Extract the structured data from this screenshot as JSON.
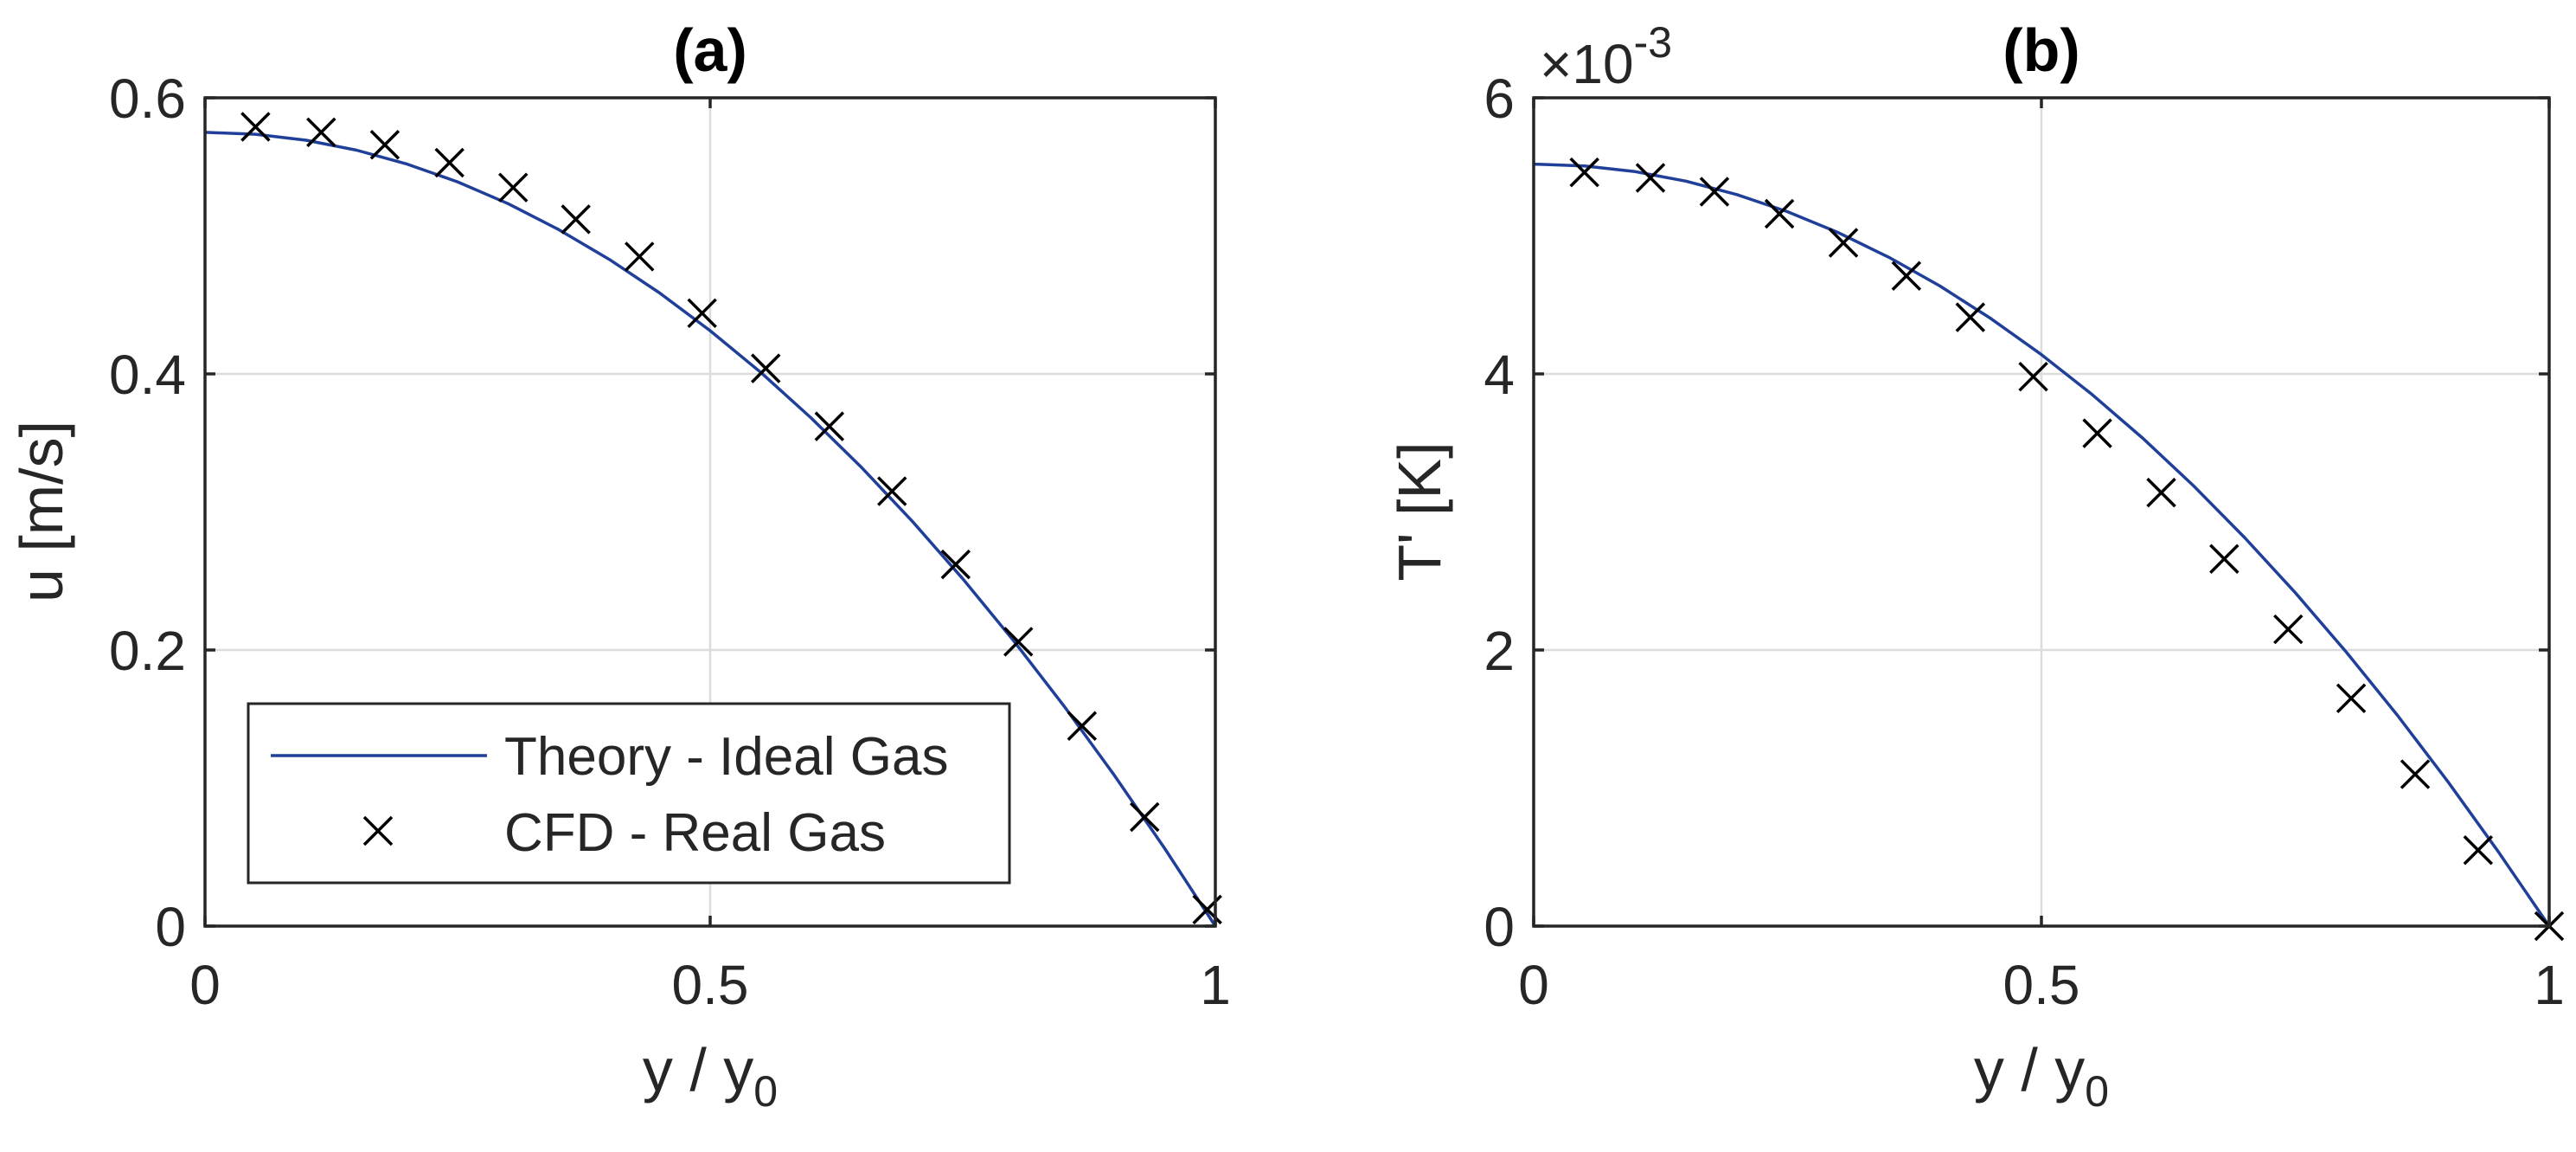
{
  "chart_data": [
    {
      "type": "line",
      "panel": "a",
      "title": "(a)",
      "xlabel": "y / y",
      "xlabel_sub": "0",
      "ylabel": "u [m/s]",
      "xlim": [
        0,
        1
      ],
      "ylim": [
        0,
        0.6
      ],
      "xticks": [
        0,
        0.5,
        1
      ],
      "xtick_labels": [
        "0",
        "0.5",
        "1"
      ],
      "yticks": [
        0,
        0.2,
        0.4,
        0.6
      ],
      "ytick_labels": [
        "0",
        "0.2",
        "0.4",
        "0.6"
      ],
      "grid": true,
      "legend": {
        "placement": "bottom-left",
        "entries": [
          "Theory - Ideal Gas",
          "CFD - Real Gas"
        ]
      },
      "series": [
        {
          "name": "Theory - Ideal Gas",
          "style": "line",
          "color": "#1f3f99",
          "x": [
            0,
            0.05,
            0.1,
            0.15,
            0.2,
            0.25,
            0.3,
            0.35,
            0.4,
            0.45,
            0.5,
            0.55,
            0.6,
            0.65,
            0.7,
            0.75,
            0.8,
            0.85,
            0.9,
            0.95,
            1.0
          ],
          "y": [
            0.575,
            0.5736,
            0.5693,
            0.5621,
            0.552,
            0.5391,
            0.5233,
            0.5046,
            0.483,
            0.4586,
            0.4313,
            0.4011,
            0.368,
            0.3321,
            0.2933,
            0.2516,
            0.207,
            0.1596,
            0.1093,
            0.0561,
            0.0
          ]
        },
        {
          "name": "CFD - Real Gas",
          "style": "marker-x",
          "color": "#000000",
          "x": [
            0.05,
            0.115,
            0.178,
            0.242,
            0.305,
            0.367,
            0.43,
            0.492,
            0.555,
            0.618,
            0.68,
            0.743,
            0.805,
            0.868,
            0.93,
            0.992
          ],
          "y": [
            0.579,
            0.575,
            0.566,
            0.553,
            0.535,
            0.512,
            0.485,
            0.444,
            0.404,
            0.362,
            0.315,
            0.262,
            0.206,
            0.145,
            0.079,
            0.012
          ]
        }
      ]
    },
    {
      "type": "line",
      "panel": "b",
      "title": "(b)",
      "xlabel": "y / y",
      "xlabel_sub": "0",
      "ylabel": "T' [K]",
      "xlim": [
        0,
        1
      ],
      "ylim": [
        0,
        6
      ],
      "y_multiplier": "×10",
      "y_multiplier_exp": "-3",
      "xticks": [
        0,
        0.5,
        1
      ],
      "xtick_labels": [
        "0",
        "0.5",
        "1"
      ],
      "yticks": [
        0,
        2,
        4,
        6
      ],
      "ytick_labels": [
        "0",
        "2",
        "4",
        "6"
      ],
      "grid": true,
      "series": [
        {
          "name": "Theory - Ideal Gas",
          "style": "line",
          "color": "#1f3f99",
          "x": [
            0,
            0.05,
            0.1,
            0.15,
            0.2,
            0.25,
            0.3,
            0.35,
            0.4,
            0.45,
            0.5,
            0.55,
            0.6,
            0.65,
            0.7,
            0.75,
            0.8,
            0.85,
            0.9,
            0.95,
            1.0
          ],
          "y": [
            5.52,
            5.506,
            5.465,
            5.396,
            5.299,
            5.175,
            5.023,
            4.844,
            4.637,
            4.402,
            4.14,
            3.85,
            3.533,
            3.188,
            2.815,
            2.415,
            1.987,
            1.532,
            1.049,
            0.538,
            0.0
          ]
        },
        {
          "name": "CFD - Real Gas",
          "style": "marker-x",
          "color": "#000000",
          "x": [
            0.05,
            0.115,
            0.178,
            0.242,
            0.305,
            0.367,
            0.43,
            0.492,
            0.555,
            0.618,
            0.68,
            0.743,
            0.805,
            0.868,
            0.93,
            1.0
          ],
          "y": [
            5.46,
            5.42,
            5.32,
            5.16,
            4.95,
            4.71,
            4.41,
            3.98,
            3.57,
            3.14,
            2.66,
            2.15,
            1.65,
            1.1,
            0.55,
            0.0
          ]
        }
      ]
    }
  ]
}
